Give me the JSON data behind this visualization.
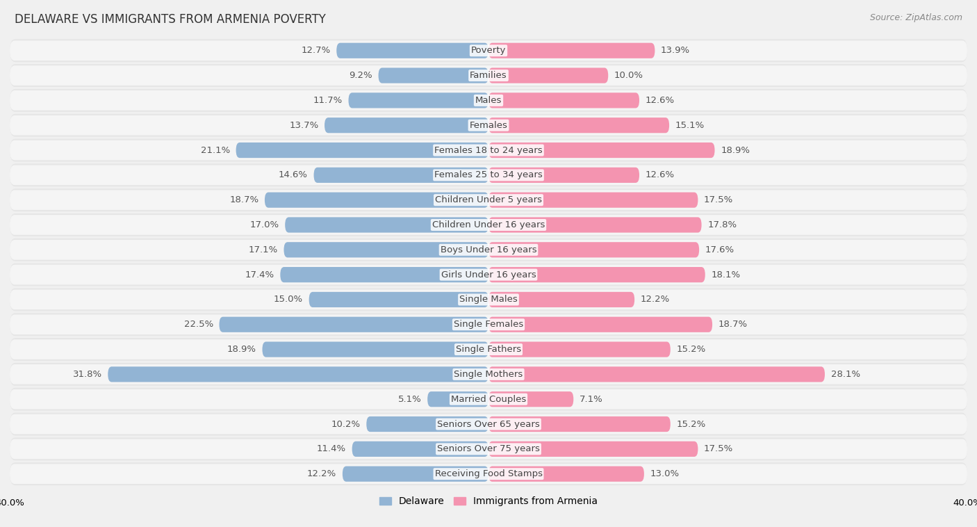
{
  "title": "DELAWARE VS IMMIGRANTS FROM ARMENIA POVERTY",
  "source": "Source: ZipAtlas.com",
  "categories": [
    "Poverty",
    "Families",
    "Males",
    "Females",
    "Females 18 to 24 years",
    "Females 25 to 34 years",
    "Children Under 5 years",
    "Children Under 16 years",
    "Boys Under 16 years",
    "Girls Under 16 years",
    "Single Males",
    "Single Females",
    "Single Fathers",
    "Single Mothers",
    "Married Couples",
    "Seniors Over 65 years",
    "Seniors Over 75 years",
    "Receiving Food Stamps"
  ],
  "delaware": [
    12.7,
    9.2,
    11.7,
    13.7,
    21.1,
    14.6,
    18.7,
    17.0,
    17.1,
    17.4,
    15.0,
    22.5,
    18.9,
    31.8,
    5.1,
    10.2,
    11.4,
    12.2
  ],
  "armenia": [
    13.9,
    10.0,
    12.6,
    15.1,
    18.9,
    12.6,
    17.5,
    17.8,
    17.6,
    18.1,
    12.2,
    18.7,
    15.2,
    28.1,
    7.1,
    15.2,
    17.5,
    13.0
  ],
  "delaware_color": "#92b4d4",
  "armenia_color": "#f494b0",
  "delaware_label": "Delaware",
  "armenia_label": "Immigrants from Armenia",
  "background_color": "#f0f0f0",
  "row_bg_color": "#e8e8e8",
  "bar_inner_bg": "#f8f8f8",
  "axis_limit": 40.0,
  "bar_height": 0.62,
  "label_fontsize": 9.5,
  "title_fontsize": 12,
  "source_fontsize": 9
}
